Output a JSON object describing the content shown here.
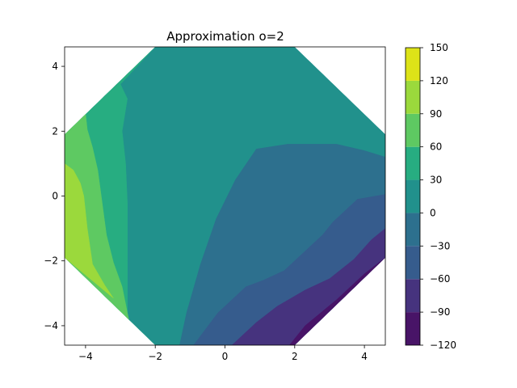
{
  "chart_data": {
    "type": "filled-contour",
    "title": "Approximation o=2",
    "xlabel": "",
    "ylabel": "",
    "xlim": [
      -4.6,
      4.6
    ],
    "ylim": [
      -4.6,
      4.6
    ],
    "x_ticks": [
      "−4",
      "−2",
      "0",
      "2",
      "4"
    ],
    "x_tick_values": [
      -4,
      -2,
      0,
      2,
      4
    ],
    "y_ticks": [
      "−4",
      "−2",
      "0",
      "2",
      "4"
    ],
    "y_tick_values": [
      -4,
      -2,
      0,
      2,
      4
    ],
    "grid": false,
    "domain_shape": "octagon",
    "domain_vertices": [
      [
        -2,
        4.6
      ],
      [
        2,
        4.6
      ],
      [
        4.6,
        1.9
      ],
      [
        4.6,
        -1.9
      ],
      [
        2,
        -4.6
      ],
      [
        -2,
        -4.6
      ],
      [
        -4.6,
        -1.9
      ],
      [
        -4.6,
        1.9
      ]
    ],
    "colorbar": {
      "levels": [
        -120,
        -90,
        -60,
        -30,
        0,
        30,
        60,
        90,
        120,
        150
      ],
      "tick_labels": [
        "−120",
        "−90",
        "−60",
        "−30",
        "0",
        "30",
        "60",
        "90",
        "120",
        "150"
      ],
      "colors": [
        "#481467",
        "#46337e",
        "#365c8d",
        "#2d708e",
        "#21918c",
        "#27ad81",
        "#5ec962",
        "#9bd93c",
        "#dde318"
      ]
    },
    "regions": [
      {
        "range": [
          0,
          30
        ],
        "points": [
          [
            -2,
            4.6
          ],
          [
            2,
            4.6
          ],
          [
            4.6,
            1.9
          ],
          [
            4.6,
            -1.9
          ],
          [
            2,
            -4.6
          ],
          [
            -2,
            -4.6
          ],
          [
            -4.6,
            -1.9
          ],
          [
            -4.6,
            1.9
          ]
        ]
      },
      {
        "range": [
          30,
          60
        ],
        "points": [
          [
            -2,
            4.6
          ],
          [
            -4.6,
            1.9
          ],
          [
            -4.6,
            -1.9
          ],
          [
            -2,
            -4.6
          ],
          [
            -2.8,
            -4.6
          ],
          [
            -2.8,
            -2
          ],
          [
            -2.8,
            -0.2
          ],
          [
            -2.85,
            1
          ],
          [
            -2.95,
            2
          ],
          [
            -2.8,
            3
          ],
          [
            -3.0,
            3.45
          ]
        ]
      },
      {
        "range": [
          30,
          60
        ],
        "points": [
          [
            2.4,
            4.6
          ],
          [
            2.9,
            4.6
          ],
          [
            4.6,
            2.2
          ],
          [
            4.45,
            2.1
          ],
          [
            3.5,
            3.2
          ]
        ]
      },
      {
        "range": [
          60,
          90
        ],
        "points": [
          [
            -4.6,
            1.9
          ],
          [
            -4.6,
            -1.9
          ],
          [
            -2.75,
            -3.85
          ],
          [
            -2.8,
            -3.6
          ],
          [
            -2.95,
            -2.8
          ],
          [
            -3.2,
            -2.05
          ],
          [
            -3.4,
            -1.2
          ],
          [
            -3.55,
            0
          ],
          [
            -3.65,
            0.8
          ],
          [
            -3.8,
            1.5
          ],
          [
            -3.95,
            2.05
          ],
          [
            -4.0,
            2.55
          ]
        ]
      },
      {
        "range": [
          90,
          120
        ],
        "points": [
          [
            -4.6,
            1
          ],
          [
            -4.6,
            -1.9
          ],
          [
            -3.2,
            -3.15
          ],
          [
            -3.45,
            -2.75
          ],
          [
            -3.8,
            -2.1
          ],
          [
            -3.95,
            -1.0
          ],
          [
            -4.05,
            0
          ],
          [
            -4.15,
            0.4
          ],
          [
            -4.35,
            0.8
          ]
        ]
      },
      {
        "range": [
          -30,
          0
        ],
        "points": [
          [
            4.6,
            1.2
          ],
          [
            4.6,
            -1.9
          ],
          [
            2,
            -4.6
          ],
          [
            -1.3,
            -4.6
          ],
          [
            -1.1,
            -3.6
          ],
          [
            -0.7,
            -2.1
          ],
          [
            -0.25,
            -0.7
          ],
          [
            0.3,
            0.5
          ],
          [
            0.9,
            1.45
          ],
          [
            1.8,
            1.6
          ],
          [
            3.2,
            1.6
          ],
          [
            4.0,
            1.4
          ]
        ]
      },
      {
        "range": [
          -60,
          -30
        ],
        "points": [
          [
            4.6,
            0.05
          ],
          [
            4.6,
            -1.9
          ],
          [
            2,
            -4.6
          ],
          [
            -0.9,
            -4.6
          ],
          [
            -0.2,
            -3.6
          ],
          [
            0.6,
            -2.8
          ],
          [
            1.1,
            -2.6
          ],
          [
            1.7,
            -2.3
          ],
          [
            2.8,
            -1.2
          ],
          [
            3.1,
            -0.8
          ],
          [
            3.8,
            -0.1
          ]
        ]
      },
      {
        "range": [
          -90,
          -60
        ],
        "points": [
          [
            4.6,
            -1.0
          ],
          [
            4.6,
            -1.9
          ],
          [
            2,
            -4.6
          ],
          [
            0.2,
            -4.6
          ],
          [
            0.9,
            -3.9
          ],
          [
            1.5,
            -3.4
          ],
          [
            2.3,
            -2.9
          ],
          [
            3.0,
            -2.55
          ],
          [
            3.7,
            -1.95
          ],
          [
            4.2,
            -1.35
          ]
        ]
      },
      {
        "range": [
          -120,
          -90
        ],
        "points": [
          [
            4.6,
            -1.9
          ],
          [
            2,
            -4.6
          ],
          [
            1.85,
            -4.6
          ],
          [
            2.3,
            -4.0
          ],
          [
            3.2,
            -3.2
          ],
          [
            4.0,
            -2.4
          ]
        ]
      }
    ]
  }
}
